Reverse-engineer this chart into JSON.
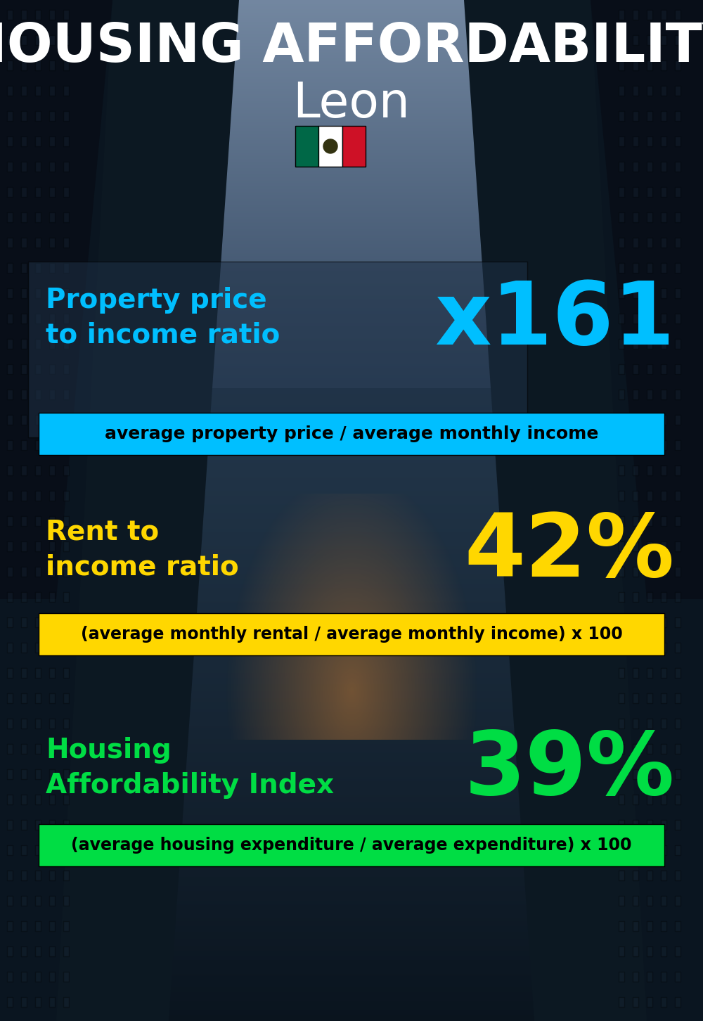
{
  "title_line1": "HOUSING AFFORDABILITY",
  "title_line2": "Leon",
  "bg_color": "#0d1a27",
  "section1_label": "Property price\nto income ratio",
  "section1_value": "x161",
  "section1_label_color": "#00bfff",
  "section1_value_color": "#00bfff",
  "section1_banner_text": "average property price / average monthly income",
  "section1_banner_bg": "#00bfff",
  "section1_banner_text_color": "#000000",
  "section2_label": "Rent to\nincome ratio",
  "section2_value": "42%",
  "section2_label_color": "#ffd700",
  "section2_value_color": "#ffd700",
  "section2_banner_text": "(average monthly rental / average monthly income) x 100",
  "section2_banner_bg": "#ffd700",
  "section2_banner_text_color": "#000000",
  "section3_label": "Housing\nAffordability Index",
  "section3_value": "39%",
  "section3_label_color": "#00dd44",
  "section3_value_color": "#00dd44",
  "section3_banner_text": "(average housing expenditure / average expenditure) x 100",
  "section3_banner_bg": "#00dd44",
  "section3_banner_text_color": "#000000",
  "flag_green": "#006847",
  "flag_white": "#ffffff",
  "flag_red": "#ce1126",
  "title_color": "#ffffff",
  "subtitle_color": "#ffffff"
}
